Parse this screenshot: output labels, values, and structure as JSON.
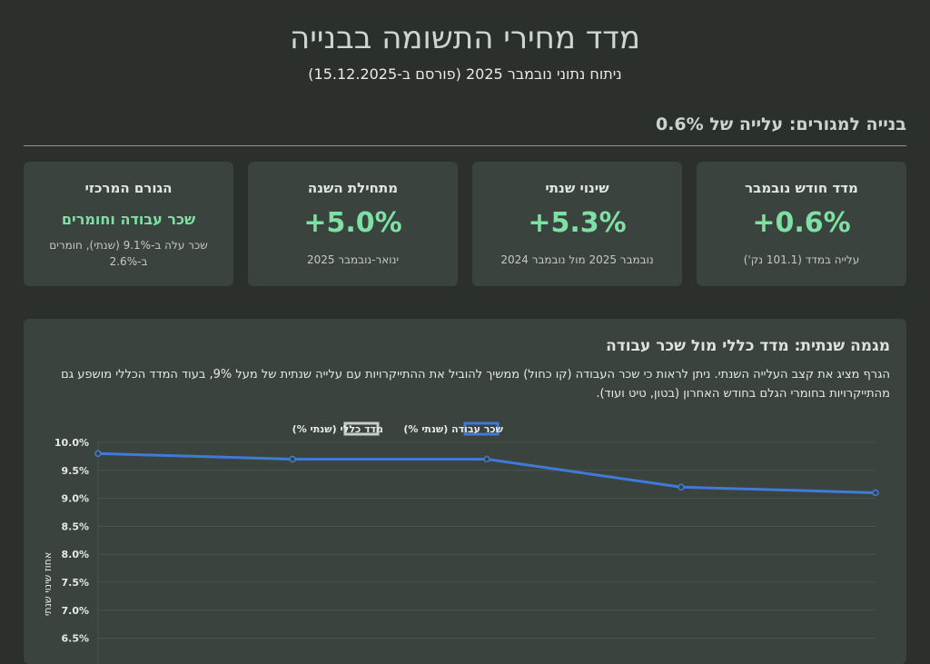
{
  "header": {
    "title": "מדד מחירי התשומה בבנייה",
    "subtitle": "ניתוח נתוני נובמבר 2025 (פורסם ב-15.12.2025)"
  },
  "section": {
    "title": "בנייה למגורים: עלייה של 0.6%"
  },
  "cards": [
    {
      "label": "מדד חודש נובמבר",
      "value": "+0.6%",
      "note": "עלייה במדד (101.1 נק')"
    },
    {
      "label": "שינוי שנתי",
      "value": "+5.3%",
      "note": "נובמבר 2025 מול נובמבר 2024"
    },
    {
      "label": "מתחילת השנה",
      "value": "+5.0%",
      "note": "ינואר-נובמבר 2025"
    },
    {
      "label": "הגורם המרכזי",
      "value": "שכר עבודה וחומרים",
      "note": "שכר עלה ב-9.1% (שנתי), חומרים ב-2.6%"
    }
  ],
  "panel": {
    "title": "מגמה שנתית: מדד כללי מול שכר עבודה",
    "description": "הגרף מציג את קצב העלייה השנתי. ניתן לראות כי שכר העבודה (קו כחול) ממשיך להוביל את ההתייקרויות עם עלייה שנתית של מעל 9%, בעוד המדד הכללי מושפע גם מהתייקרויות בחומרי הגלם בחודש האחרון (בטון, טיט ועוד)."
  },
  "chart_data": {
    "type": "line",
    "ylabel": "אחוז שינוי שנתי",
    "ylim": [
      6.5,
      10.0
    ],
    "yticks": [
      "10.0%",
      "9.5%",
      "9.0%",
      "8.5%",
      "8.0%",
      "7.5%",
      "7.0%",
      "6.5%"
    ],
    "legend_position": "top-center",
    "series": [
      {
        "name": "שכר עבודה (שנתי %)",
        "color": "#3f7ad8",
        "values": [
          9.8,
          9.7,
          9.7,
          9.2,
          9.1
        ]
      },
      {
        "name": "מדד כללי (שנתי %)",
        "color": "#c8cdc9",
        "values": []
      }
    ]
  }
}
